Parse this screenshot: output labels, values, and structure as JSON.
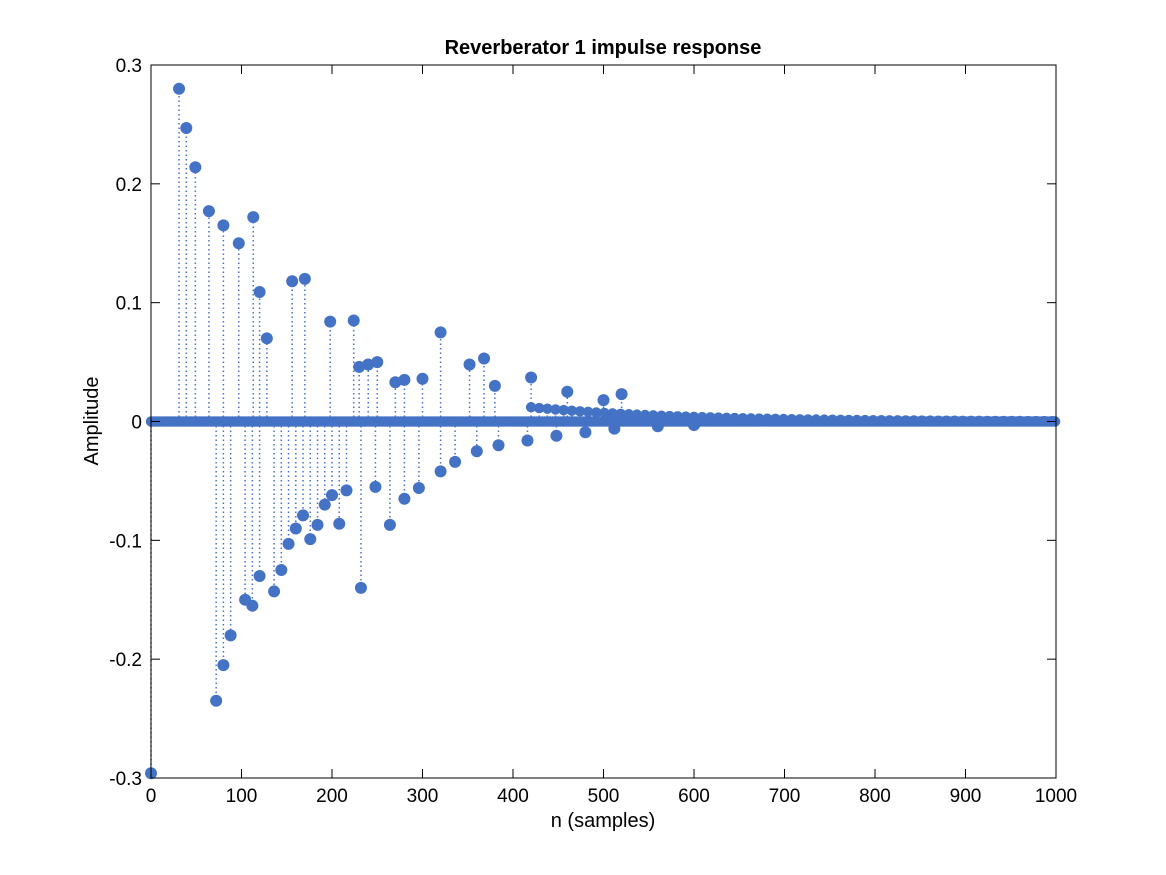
{
  "chart_data": {
    "type": "stem",
    "title": "Reverberator 1 impulse response",
    "xlabel": "n (samples)",
    "ylabel": "Amplitude",
    "xlim": [
      0,
      1000
    ],
    "ylim": [
      -0.3,
      0.3
    ],
    "xticks": [
      0,
      100,
      200,
      300,
      400,
      500,
      600,
      700,
      800,
      900,
      1000
    ],
    "xtick_labels": [
      "0",
      "100",
      "200",
      "300",
      "400",
      "500",
      "600",
      "700",
      "800",
      "900",
      "1000"
    ],
    "yticks": [
      -0.3,
      -0.2,
      -0.1,
      0,
      0.1,
      0.2,
      0.3
    ],
    "ytick_labels": [
      "-0.3",
      "-0.2",
      "-0.1",
      "0",
      "0.1",
      "0.2",
      "0.3"
    ],
    "grid": false,
    "box": true,
    "colors": {
      "stem": "#4472c4",
      "marker": "#4472c4",
      "baseline": "#000000"
    },
    "series": [
      {
        "x": [
          0,
          31,
          39,
          49,
          64,
          80,
          97,
          113,
          120,
          128,
          156,
          170,
          198,
          224,
          230,
          240,
          250,
          270,
          280,
          300,
          320,
          352,
          368,
          380,
          420,
          460,
          500,
          520,
          72,
          80,
          88,
          104,
          112,
          120,
          136,
          144,
          152,
          160,
          168,
          176,
          184,
          192,
          200,
          208,
          216,
          232,
          248,
          264,
          280,
          296,
          320,
          336,
          360,
          384,
          416,
          448,
          480,
          512,
          560,
          600
        ],
        "y": [
          -0.296,
          0.28,
          0.247,
          0.214,
          0.177,
          0.165,
          0.15,
          0.172,
          0.109,
          0.07,
          0.118,
          0.12,
          0.084,
          0.085,
          0.046,
          0.048,
          0.05,
          0.033,
          0.035,
          0.036,
          0.075,
          0.048,
          0.053,
          0.03,
          0.037,
          0.025,
          0.018,
          0.023,
          -0.235,
          -0.205,
          -0.18,
          -0.15,
          -0.155,
          -0.13,
          -0.143,
          -0.125,
          -0.103,
          -0.09,
          -0.079,
          -0.099,
          -0.087,
          -0.07,
          -0.062,
          -0.086,
          -0.058,
          -0.14,
          -0.055,
          -0.087,
          -0.065,
          -0.056,
          -0.042,
          -0.034,
          -0.025,
          -0.02,
          -0.016,
          -0.012,
          -0.009,
          -0.006,
          -0.004,
          -0.003
        ]
      }
    ]
  }
}
